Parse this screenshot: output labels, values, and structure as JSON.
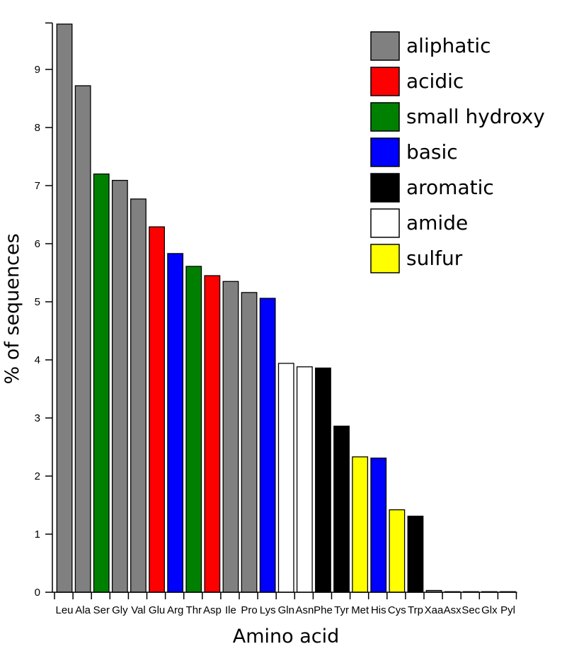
{
  "chart_data": {
    "type": "bar",
    "title": "",
    "xlabel": "Amino acid",
    "ylabel": "% of sequences",
    "ylim": [
      0,
      9.8
    ],
    "yticks": [
      0,
      1,
      2,
      3,
      4,
      5,
      6,
      7,
      8,
      9
    ],
    "grid": false,
    "legend_position": "top-right",
    "categories": [
      "Leu",
      "Ala",
      "Ser",
      "Gly",
      "Val",
      "Glu",
      "Arg",
      "Thr",
      "Asp",
      "Ile",
      "Pro",
      "Lys",
      "Gln",
      "Asn",
      "Phe",
      "Tyr",
      "Met",
      "His",
      "Cys",
      "Trp",
      "Xaa",
      "Asx",
      "Sec",
      "Glx",
      "Pyl"
    ],
    "values": [
      9.78,
      8.72,
      7.2,
      7.09,
      6.77,
      6.29,
      5.83,
      5.61,
      5.45,
      5.35,
      5.16,
      5.06,
      3.94,
      3.88,
      3.86,
      2.86,
      2.33,
      2.31,
      1.42,
      1.31,
      0.03,
      0.01,
      0.01,
      0.01,
      0.01
    ],
    "groups": [
      "aliphatic",
      "aliphatic",
      "small hydroxy",
      "aliphatic",
      "aliphatic",
      "acidic",
      "basic",
      "small hydroxy",
      "acidic",
      "aliphatic",
      "aliphatic",
      "basic",
      "amide",
      "amide",
      "aromatic",
      "aromatic",
      "sulfur",
      "basic",
      "sulfur",
      "aromatic",
      "aliphatic",
      "aliphatic",
      "aliphatic",
      "aliphatic",
      "aliphatic"
    ],
    "legend": [
      {
        "name": "aliphatic",
        "color": "#808080"
      },
      {
        "name": "acidic",
        "color": "#ff0000"
      },
      {
        "name": "small hydroxy",
        "color": "#008000"
      },
      {
        "name": "basic",
        "color": "#0000ff"
      },
      {
        "name": "aromatic",
        "color": "#000000"
      },
      {
        "name": "amide",
        "color": "#ffffff"
      },
      {
        "name": "sulfur",
        "color": "#ffff00"
      }
    ]
  }
}
